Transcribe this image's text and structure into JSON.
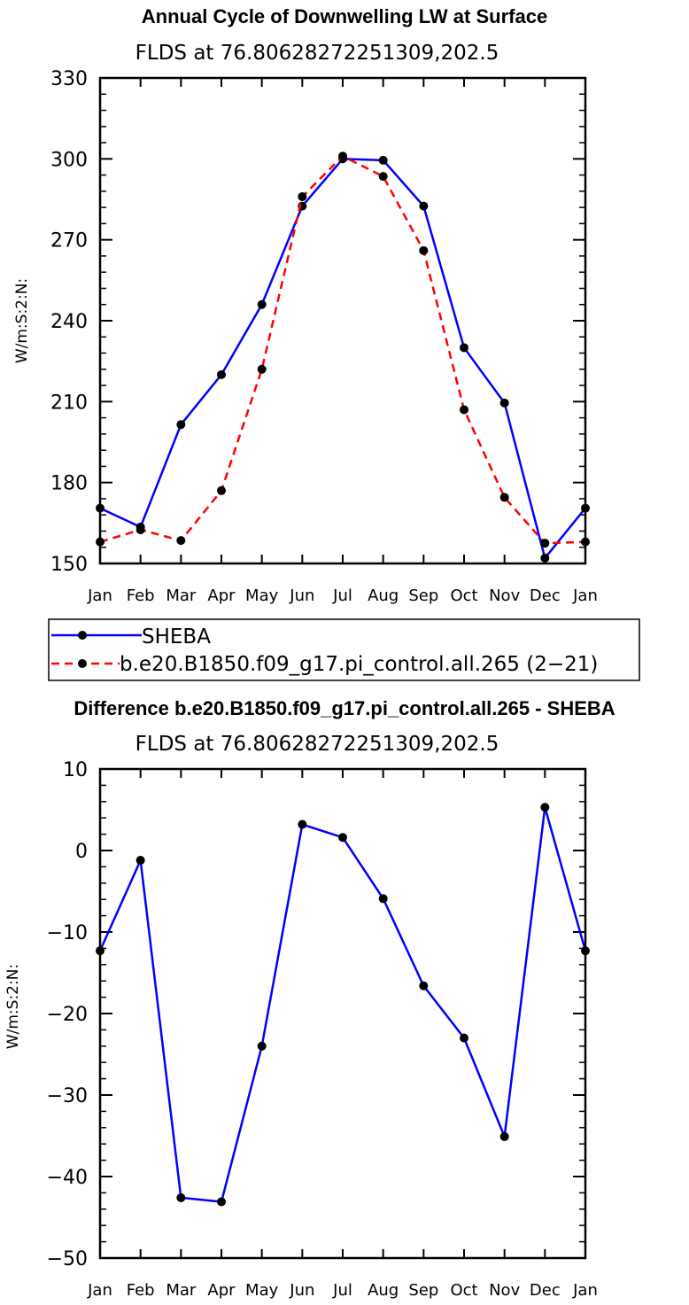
{
  "chart_data": [
    {
      "type": "line",
      "title": "Annual Cycle of Downwelling LW at Surface",
      "subtitle": "FLDS at 76.80628272251309,202.5",
      "ylabel": "W/m:S:2:N:",
      "xlabel": "",
      "categories": [
        "Jan",
        "Feb",
        "Mar",
        "Apr",
        "May",
        "Jun",
        "Jul",
        "Aug",
        "Sep",
        "Oct",
        "Nov",
        "Dec",
        "Jan"
      ],
      "ylim": [
        150,
        330
      ],
      "yticks": [
        150,
        180,
        210,
        240,
        270,
        300,
        330
      ],
      "ytick_labels": [
        "150",
        "180",
        "210",
        "240",
        "270",
        "300",
        "330"
      ],
      "series": [
        {
          "name": "SHEBA",
          "color": "#0000ff",
          "dash": "solid",
          "values": [
            170.5,
            163.5,
            201.5,
            220,
            246,
            282.5,
            300,
            299.5,
            282.5,
            230,
            209.5,
            152,
            170.5
          ]
        },
        {
          "name": "b.e20.B1850.f09_g17.pi_control.all.265 (2−21)",
          "color": "#ff0000",
          "dash": "dashed",
          "values": [
            158,
            162.5,
            158.5,
            177,
            222,
            286,
            301,
            293.5,
            266,
            207,
            174.5,
            157.5,
            158
          ]
        }
      ],
      "legend": "below-left"
    },
    {
      "type": "line",
      "title": "Difference b.e20.B1850.f09_g17.pi_control.all.265 - SHEBA",
      "subtitle": "FLDS at 76.80628272251309,202.5",
      "ylabel": "W/m:S:2:N:",
      "xlabel": "",
      "categories": [
        "Jan",
        "Feb",
        "Mar",
        "Apr",
        "May",
        "Jun",
        "Jul",
        "Aug",
        "Sep",
        "Oct",
        "Nov",
        "Dec",
        "Jan"
      ],
      "ylim": [
        -50,
        10
      ],
      "yticks": [
        -50,
        -40,
        -30,
        -20,
        -10,
        0,
        10
      ],
      "ytick_labels": [
        "−50",
        "−40",
        "−30",
        "−20",
        "−10",
        "0",
        "10"
      ],
      "series": [
        {
          "color": "#0000ff",
          "dash": "solid",
          "values": [
            -12.3,
            -1.2,
            -42.6,
            -43.1,
            -24,
            3.2,
            1.6,
            -5.9,
            -16.6,
            -23,
            -35.1,
            5.3,
            -12.3
          ]
        }
      ]
    }
  ]
}
